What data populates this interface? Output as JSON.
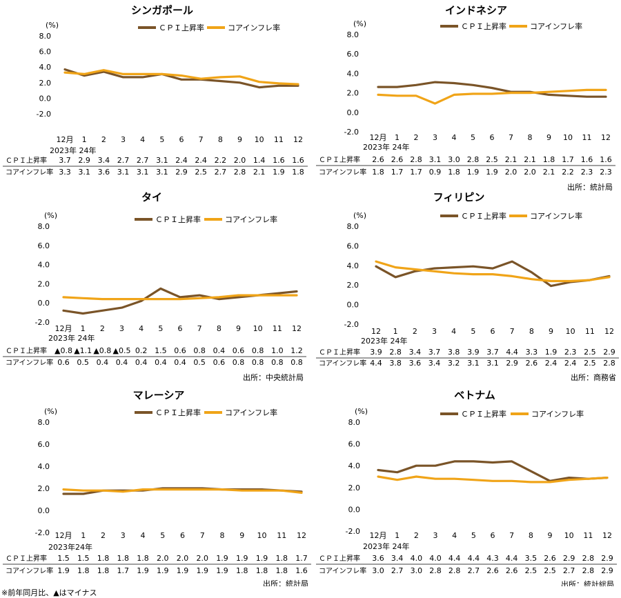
{
  "legend": {
    "cpi": "ＣＰＩ上昇率",
    "core": "コアインフレ率"
  },
  "colors": {
    "cpi": "#7a5428",
    "core": "#f0a418"
  },
  "footnote": "※前年同月比、▲はマイナス",
  "chart_data": [
    {
      "type": "line",
      "title": "シンガポール",
      "ylabel": "(%)",
      "ylim": [
        -2.0,
        8.0
      ],
      "y_ticks": [
        "8.0",
        "6.0",
        "4.0",
        "2.0",
        "0.0",
        "-2.0"
      ],
      "x": [
        "12月",
        "1",
        "2",
        "3",
        "4",
        "5",
        "6",
        "7",
        "8",
        "9",
        "10",
        "11",
        "12"
      ],
      "x_sublabel": "2023年 24年",
      "series": [
        {
          "name": "ＣＰＩ上昇率",
          "values": [
            3.7,
            2.9,
            3.4,
            2.7,
            2.7,
            3.1,
            2.4,
            2.4,
            2.2,
            2.0,
            1.4,
            1.6,
            1.6
          ],
          "labels": [
            "3.7",
            "2.9",
            "3.4",
            "2.7",
            "2.7",
            "3.1",
            "2.4",
            "2.4",
            "2.2",
            "2.0",
            "1.4",
            "1.6",
            "1.6"
          ]
        },
        {
          "name": "コアインフレ率",
          "values": [
            3.3,
            3.1,
            3.6,
            3.1,
            3.1,
            3.1,
            2.9,
            2.5,
            2.7,
            2.8,
            2.1,
            1.9,
            1.8
          ],
          "labels": [
            "3.3",
            "3.1",
            "3.6",
            "3.1",
            "3.1",
            "3.1",
            "2.9",
            "2.5",
            "2.7",
            "2.8",
            "2.1",
            "1.9",
            "1.8"
          ]
        }
      ],
      "source": ""
    },
    {
      "type": "line",
      "title": "インドネシア",
      "ylabel": "(%)",
      "ylim": [
        -2.0,
        8.0
      ],
      "y_ticks": [
        "8.0",
        "6.0",
        "4.0",
        "2.0",
        "0.0",
        "-2.0"
      ],
      "x": [
        "12月",
        "1",
        "2",
        "3",
        "4",
        "5",
        "6",
        "7",
        "8",
        "9",
        "10",
        "11",
        "12"
      ],
      "x_sublabel": "2023年 24年",
      "series": [
        {
          "name": "ＣＰＩ上昇率",
          "values": [
            2.6,
            2.6,
            2.8,
            3.1,
            3.0,
            2.8,
            2.5,
            2.1,
            2.1,
            1.8,
            1.7,
            1.6,
            1.6
          ],
          "labels": [
            "2.6",
            "2.6",
            "2.8",
            "3.1",
            "3.0",
            "2.8",
            "2.5",
            "2.1",
            "2.1",
            "1.8",
            "1.7",
            "1.6",
            "1.6"
          ]
        },
        {
          "name": "コアインフレ率",
          "values": [
            1.8,
            1.7,
            1.7,
            0.9,
            1.8,
            1.9,
            1.9,
            2.0,
            2.0,
            2.1,
            2.2,
            2.3,
            2.3
          ],
          "labels": [
            "1.8",
            "1.7",
            "1.7",
            "0.9",
            "1.8",
            "1.9",
            "1.9",
            "2.0",
            "2.0",
            "2.1",
            "2.2",
            "2.3",
            "2.3"
          ]
        }
      ],
      "source": "出所：統計局"
    },
    {
      "type": "line",
      "title": "タイ",
      "ylabel": "(%)",
      "ylim": [
        -2.0,
        8.0
      ],
      "y_ticks": [
        "8.0",
        "6.0",
        "4.0",
        "2.0",
        "0.0",
        "-2.0"
      ],
      "x": [
        "12月",
        "1",
        "2",
        "3",
        "4",
        "5",
        "6",
        "7",
        "8",
        "9",
        "10",
        "11",
        "12"
      ],
      "x_sublabel": "2023年 24年",
      "series": [
        {
          "name": "ＣＰＩ上昇率",
          "values": [
            -0.8,
            -1.1,
            -0.8,
            -0.5,
            0.2,
            1.5,
            0.6,
            0.8,
            0.4,
            0.6,
            0.8,
            1.0,
            1.2
          ],
          "labels": [
            "▲0.8",
            "▲1.1",
            "▲0.8",
            "▲0.5",
            "0.2",
            "1.5",
            "0.6",
            "0.8",
            "0.4",
            "0.6",
            "0.8",
            "1.0",
            "1.2"
          ]
        },
        {
          "name": "コアインフレ率",
          "values": [
            0.6,
            0.5,
            0.4,
            0.4,
            0.4,
            0.4,
            0.4,
            0.5,
            0.6,
            0.8,
            0.8,
            0.8,
            0.8
          ],
          "labels": [
            "0.6",
            "0.5",
            "0.4",
            "0.4",
            "0.4",
            "0.4",
            "0.4",
            "0.5",
            "0.6",
            "0.8",
            "0.8",
            "0.8",
            "0.8"
          ]
        }
      ],
      "source": "出所：中央統計局"
    },
    {
      "type": "line",
      "title": "フィリピン",
      "ylabel": "(%)",
      "ylim": [
        -2.0,
        8.0
      ],
      "y_ticks": [
        "8.0",
        "6.0",
        "4.0",
        "2.0",
        "0.0",
        "-2.0"
      ],
      "x": [
        "12",
        "1",
        "2",
        "3",
        "4",
        "5",
        "6",
        "7",
        "8",
        "9",
        "10",
        "11",
        "12"
      ],
      "x_sublabel": "2023年 24年",
      "series": [
        {
          "name": "ＣＰＩ上昇率",
          "values": [
            3.9,
            2.8,
            3.4,
            3.7,
            3.8,
            3.9,
            3.7,
            4.4,
            3.3,
            1.9,
            2.3,
            2.5,
            2.9
          ],
          "labels": [
            "3.9",
            "2.8",
            "3.4",
            "3.7",
            "3.8",
            "3.9",
            "3.7",
            "4.4",
            "3.3",
            "1.9",
            "2.3",
            "2.5",
            "2.9"
          ]
        },
        {
          "name": "コアインフレ率",
          "values": [
            4.4,
            3.8,
            3.6,
            3.4,
            3.2,
            3.1,
            3.1,
            2.9,
            2.6,
            2.4,
            2.4,
            2.5,
            2.8
          ],
          "labels": [
            "4.4",
            "3.8",
            "3.6",
            "3.4",
            "3.2",
            "3.1",
            "3.1",
            "2.9",
            "2.6",
            "2.4",
            "2.4",
            "2.5",
            "2.8"
          ]
        }
      ],
      "source": "出所：商務省"
    },
    {
      "type": "line",
      "title": "マレーシア",
      "ylabel": "(%)",
      "ylim": [
        -2.0,
        8.0
      ],
      "y_ticks": [
        "8.0",
        "6.0",
        "4.0",
        "2.0",
        "0.0",
        "-2.0"
      ],
      "x": [
        "12月",
        "1",
        "2",
        "3",
        "4",
        "5",
        "6",
        "7",
        "8",
        "9",
        "10",
        "11",
        "12"
      ],
      "x_sublabel": "2023年24年",
      "series": [
        {
          "name": "ＣＰＩ上昇率",
          "values": [
            1.5,
            1.5,
            1.8,
            1.8,
            1.8,
            2.0,
            2.0,
            2.0,
            1.9,
            1.9,
            1.9,
            1.8,
            1.7
          ],
          "labels": [
            "1.5",
            "1.5",
            "1.8",
            "1.8",
            "1.8",
            "2.0",
            "2.0",
            "2.0",
            "1.9",
            "1.9",
            "1.9",
            "1.8",
            "1.7"
          ]
        },
        {
          "name": "コアインフレ率",
          "values": [
            1.9,
            1.8,
            1.8,
            1.7,
            1.9,
            1.9,
            1.9,
            1.9,
            1.9,
            1.8,
            1.8,
            1.8,
            1.6
          ],
          "labels": [
            "1.9",
            "1.8",
            "1.8",
            "1.7",
            "1.9",
            "1.9",
            "1.9",
            "1.9",
            "1.9",
            "1.8",
            "1.8",
            "1.8",
            "1.6"
          ]
        }
      ],
      "source": "出所：統計局"
    },
    {
      "type": "line",
      "title": "ベトナム",
      "ylabel": "(%)",
      "ylim": [
        -2.0,
        8.0
      ],
      "y_ticks": [
        "8.0",
        "6.0",
        "4.0",
        "2.0",
        "0.0",
        "-2.0"
      ],
      "x": [
        "12月",
        "1",
        "2",
        "3",
        "4",
        "5",
        "6",
        "7",
        "8",
        "9",
        "10",
        "11",
        "12"
      ],
      "x_sublabel": "2023年 24年",
      "series": [
        {
          "name": "ＣＰＩ上昇率",
          "values": [
            3.6,
            3.4,
            4.0,
            4.0,
            4.4,
            4.4,
            4.3,
            4.4,
            3.5,
            2.6,
            2.9,
            2.8,
            2.9
          ],
          "labels": [
            "3.6",
            "3.4",
            "4.0",
            "4.0",
            "4.4",
            "4.4",
            "4.3",
            "4.4",
            "3.5",
            "2.6",
            "2.9",
            "2.8",
            "2.9"
          ]
        },
        {
          "name": "コアインフレ率",
          "values": [
            3.0,
            2.7,
            3.0,
            2.8,
            2.8,
            2.7,
            2.6,
            2.6,
            2.5,
            2.5,
            2.7,
            2.8,
            2.9
          ],
          "labels": [
            "3.0",
            "2.7",
            "3.0",
            "2.8",
            "2.8",
            "2.7",
            "2.6",
            "2.6",
            "2.5",
            "2.5",
            "2.7",
            "2.8",
            "2.9"
          ]
        }
      ],
      "source": "出所：統計総局"
    }
  ]
}
